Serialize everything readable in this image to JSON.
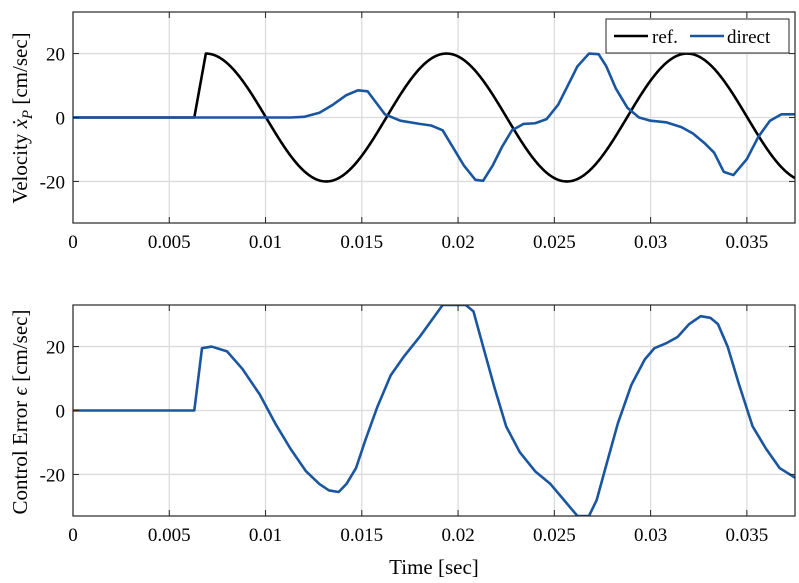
{
  "chart_data": [
    {
      "id": "top",
      "type": "line",
      "title": "",
      "xlabel": "",
      "ylabel": "Velocity ẋ_P [cm/sec]",
      "ylabel_main": "Velocity ",
      "ylabel_math": "ẋ",
      "ylabel_sub": "P",
      "ylabel_units": " [cm/sec]",
      "xlim": [
        0,
        0.0375
      ],
      "ylim": [
        -33,
        33
      ],
      "xticks": [
        0,
        0.005,
        0.01,
        0.015,
        0.02,
        0.025,
        0.03,
        0.035
      ],
      "xtick_labels": [
        "0",
        "0.005",
        "0.01",
        "0.015",
        "0.02",
        "0.025",
        "0.03",
        "0.035"
      ],
      "yticks": [
        -20,
        0,
        20
      ],
      "ytick_labels": [
        "-20",
        "0",
        "20"
      ],
      "grid": true,
      "legend": {
        "placement": "top-right",
        "entries": [
          "ref.",
          "direct"
        ]
      },
      "series": [
        {
          "name": "ref.",
          "color": "#000000",
          "kind": "sine",
          "amplitude": 20,
          "period": 0.0125,
          "start": 0.0063,
          "peak_time": 0.0069,
          "values_note_points": [
            [
              0,
              0
            ],
            [
              0.0063,
              0
            ],
            [
              0.0069,
              20
            ],
            [
              0.0131,
              -20
            ],
            [
              0.0194,
              20
            ],
            [
              0.0256,
              -20
            ],
            [
              0.0319,
              20
            ],
            [
              0.0375,
              -19
            ]
          ]
        },
        {
          "name": "direct",
          "color": "#1a56a0",
          "kind": "points",
          "x": [
            0,
            0.0105,
            0.0113,
            0.012,
            0.0128,
            0.0135,
            0.0142,
            0.0148,
            0.0153,
            0.0157,
            0.0162,
            0.017,
            0.018,
            0.0186,
            0.0192,
            0.0197,
            0.0203,
            0.0209,
            0.0213,
            0.0218,
            0.0223,
            0.0228,
            0.0234,
            0.024,
            0.0246,
            0.0252,
            0.0257,
            0.0262,
            0.0268,
            0.0273,
            0.0277,
            0.0282,
            0.0288,
            0.0294,
            0.03,
            0.0308,
            0.0316,
            0.0322,
            0.0328,
            0.0333,
            0.0338,
            0.0343,
            0.035,
            0.0356,
            0.0362,
            0.0368,
            0.0375
          ],
          "y": [
            0,
            0,
            0,
            0.2,
            1.5,
            4,
            7,
            8.5,
            8.2,
            5,
            1,
            -1,
            -2,
            -2.5,
            -4,
            -9,
            -15,
            -19.5,
            -19.8,
            -15,
            -9,
            -4,
            -2,
            -1.8,
            -0.5,
            4,
            10,
            16,
            20,
            19.8,
            16,
            9,
            3,
            0,
            -1,
            -1.5,
            -3,
            -5,
            -8,
            -11,
            -17,
            -18,
            -13,
            -6,
            -1,
            1,
            1
          ]
        }
      ]
    },
    {
      "id": "bottom",
      "type": "line",
      "title": "",
      "xlabel": "Time [sec]",
      "ylabel": "Control Error ε [cm/sec]",
      "ylabel_main": "Control Error ",
      "ylabel_math": "ϵ",
      "ylabel_sub": "",
      "ylabel_units": " [cm/sec]",
      "xlim": [
        0,
        0.0375
      ],
      "ylim": [
        -33,
        33
      ],
      "xticks": [
        0,
        0.005,
        0.01,
        0.015,
        0.02,
        0.025,
        0.03,
        0.035
      ],
      "xtick_labels": [
        "0",
        "0.005",
        "0.01",
        "0.015",
        "0.02",
        "0.025",
        "0.03",
        "0.035"
      ],
      "yticks": [
        -20,
        0,
        20
      ],
      "ytick_labels": [
        "-20",
        "0",
        "20"
      ],
      "grid": true,
      "series": [
        {
          "name": "",
          "color": "#1a56a0",
          "kind": "points",
          "x": [
            0,
            0.0063,
            0.0067,
            0.0072,
            0.008,
            0.0088,
            0.0097,
            0.0105,
            0.0113,
            0.0121,
            0.0128,
            0.0133,
            0.0138,
            0.0142,
            0.0147,
            0.0152,
            0.0158,
            0.0165,
            0.0172,
            0.018,
            0.0186,
            0.0192,
            0.0197,
            0.0204,
            0.0208,
            0.0213,
            0.0219,
            0.0225,
            0.0232,
            0.024,
            0.0248,
            0.0255,
            0.0262,
            0.0268,
            0.0272,
            0.0277,
            0.0283,
            0.029,
            0.0297,
            0.0302,
            0.0308,
            0.0314,
            0.032,
            0.0326,
            0.0331,
            0.0335,
            0.034,
            0.0346,
            0.0353,
            0.036,
            0.0367,
            0.0375
          ],
          "y": [
            0,
            0,
            19.5,
            20,
            18.5,
            13,
            5,
            -4,
            -12,
            -19,
            -23,
            -25,
            -25.5,
            -23,
            -18,
            -9,
            1,
            11,
            17,
            23,
            28,
            33,
            33,
            33,
            31,
            20,
            7,
            -5,
            -13,
            -19,
            -23,
            -28,
            -33,
            -33,
            -28,
            -17,
            -4,
            8,
            16,
            19.5,
            21,
            23,
            27,
            29.5,
            29,
            27,
            20,
            8,
            -5,
            -12,
            -18,
            -21
          ]
        }
      ]
    }
  ]
}
